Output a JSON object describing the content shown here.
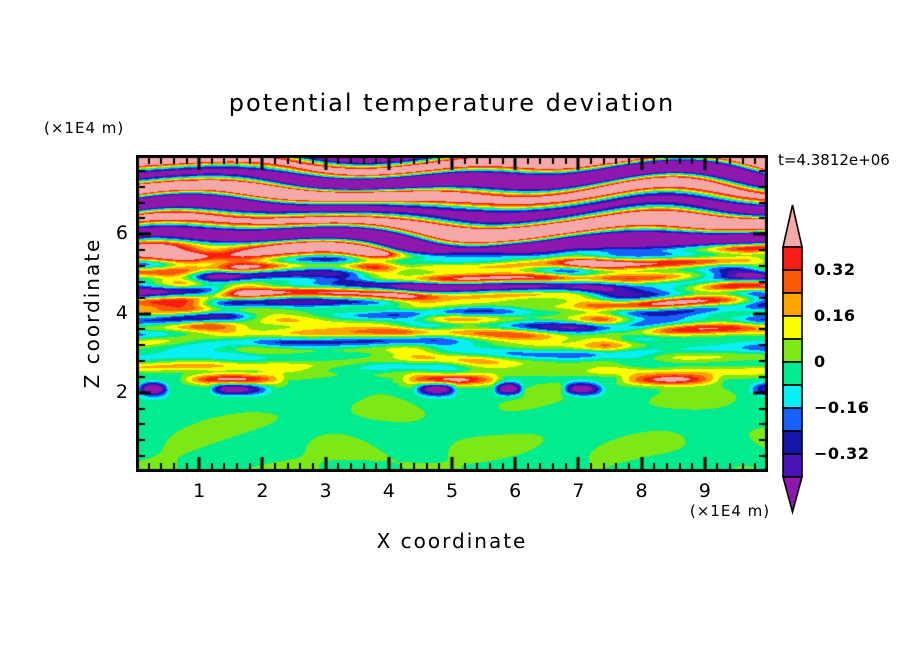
{
  "title": "potential temperature deviation",
  "time_annotation": "t=4.3812e+06",
  "axes": {
    "x_label": "X coordinate",
    "x_unit": "(×1E4 m)",
    "z_label": "Z coordinate",
    "z_unit": "(×1E4 m)",
    "x_tick_labels": [
      "1",
      "2",
      "3",
      "4",
      "5",
      "6",
      "7",
      "8",
      "9"
    ],
    "z_tick_labels": [
      "2",
      "4",
      "6"
    ]
  },
  "chart_data": {
    "type": "heatmap",
    "title": "potential temperature deviation",
    "xlabel": "X coordinate",
    "ylabel": "Z coordinate",
    "x_unit_label": "(×1E4 m)",
    "z_unit_label": "(×1E4 m)",
    "time_annotation": "t=4.3812e+06",
    "xlim": [
      0,
      10
    ],
    "zlim": [
      0,
      8
    ],
    "x_major_ticks": [
      1,
      2,
      3,
      4,
      5,
      6,
      7,
      8,
      9
    ],
    "x_minor_step": 0.2,
    "z_major_ticks": [
      2,
      4,
      6
    ],
    "z_minor_step": 0.4,
    "grid": false,
    "legend_position": "right-colorbar",
    "colorbar": {
      "levels": [
        -0.4,
        -0.32,
        -0.24,
        -0.16,
        -0.08,
        0,
        0.08,
        0.16,
        0.24,
        0.32,
        0.4
      ],
      "colors_low_to_high": [
        "#8E17AE",
        "#4813B4",
        "#1616AC",
        "#1760FA",
        "#0AEFF4",
        "#00EC8E",
        "#7CE815",
        "#FCFC00",
        "#FFA500",
        "#FA5A0A",
        "#F91C14",
        "#F5A8A8"
      ],
      "tick_labels": [
        {
          "value": 0.32,
          "label": "0.32"
        },
        {
          "value": 0.16,
          "label": "0.16"
        },
        {
          "value": 0,
          "label": "0"
        },
        {
          "value": -0.16,
          "label": "−0.16"
        },
        {
          "value": -0.32,
          "label": "−0.32"
        }
      ],
      "arrow_ends": true
    },
    "field_structure": {
      "upper_region_z_5p5_to_8": "thick alternating horizontal bands saturating beyond +0.40 (pink) and -0.40 (purple) with thin rainbow transition fringes",
      "middle_region_z_2p5_to_5p5": "horizontally elongated turbulent filaments of roughly -0.35 to +0.35 (red/orange/yellow and cyan/blue/navy streaks) over a green background",
      "lower_region_z_0_to_2p5": "weak field within ±0.08: spring-green background with yellow-green blobs and a thin intermittent ±0.4 filament near z ≈ 2.1"
    }
  },
  "colors": {
    "foreground": "#000000",
    "background": "#FFFFFF"
  }
}
